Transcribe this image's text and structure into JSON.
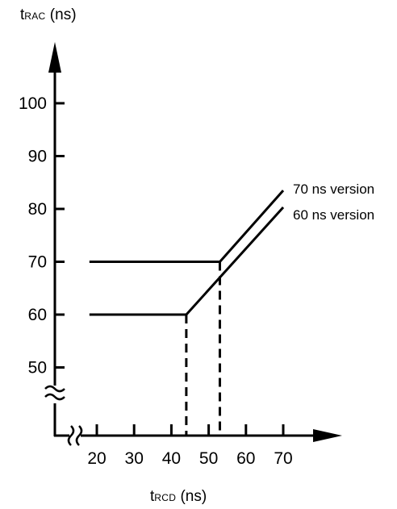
{
  "chart_data": {
    "type": "line",
    "ylabel": {
      "main": "t",
      "sub": "RAC",
      "unit": " (ns)"
    },
    "xlabel": {
      "main": "t",
      "sub": "RCD",
      "unit": " (ns)"
    },
    "x_ticks": [
      20,
      30,
      40,
      50,
      60,
      70
    ],
    "y_ticks": [
      50,
      60,
      70,
      80,
      90,
      100
    ],
    "axis_break_x": true,
    "axis_break_y": true,
    "grid": false,
    "series": [
      {
        "name": "70 ns version",
        "x": [
          18,
          53,
          70
        ],
        "y": [
          70,
          70,
          83.5
        ],
        "style": "solid",
        "color": "#000000"
      },
      {
        "name": "60 ns version",
        "x": [
          18,
          44,
          70
        ],
        "y": [
          60,
          60,
          80.3
        ],
        "style": "solid",
        "color": "#000000"
      }
    ],
    "guides": [
      {
        "x": 44,
        "y_to": 60,
        "style": "dashed"
      },
      {
        "x": 53,
        "y_to": 70,
        "style": "dashed"
      }
    ]
  }
}
